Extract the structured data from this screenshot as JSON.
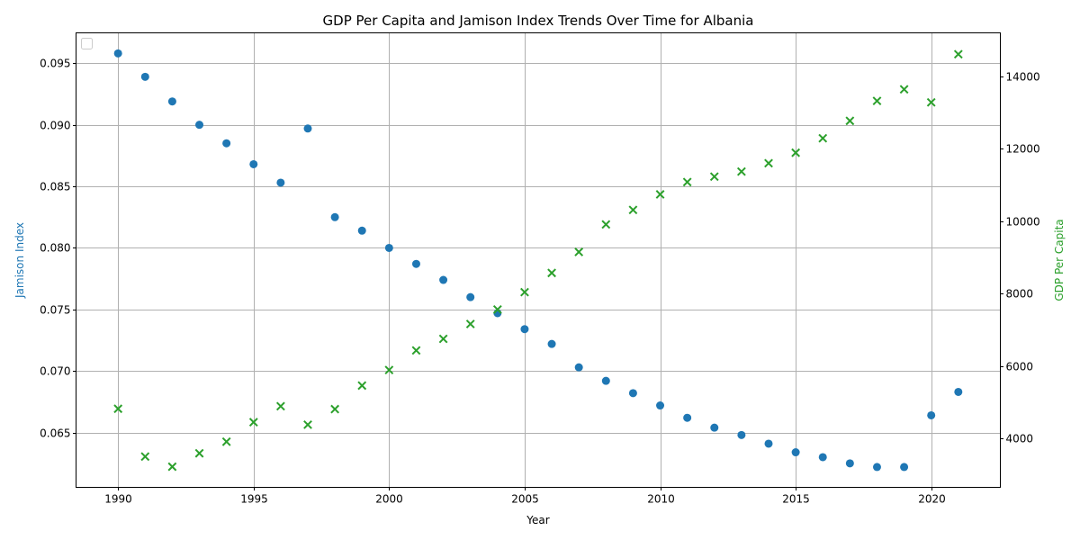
{
  "chart_data": {
    "type": "scatter",
    "title": "GDP Per Capita and Jamison Index Trends Over Time for Albania",
    "xlabel": "Year",
    "ylabel_left": "Jamison Index",
    "ylabel_right": "GDP Per Capita",
    "xlim": [
      1988.45,
      2022.55
    ],
    "ylim_left": [
      0.06055,
      0.09747
    ],
    "ylim_right": [
      2650,
      15200
    ],
    "x_ticks": [
      1990,
      1995,
      2000,
      2005,
      2010,
      2015,
      2020
    ],
    "y_left_ticks": [
      0.065,
      0.07,
      0.075,
      0.08,
      0.085,
      0.09,
      0.095
    ],
    "y_left_tick_labels": [
      "0.065",
      "0.070",
      "0.075",
      "0.080",
      "0.085",
      "0.090",
      "0.095"
    ],
    "y_right_ticks": [
      4000,
      6000,
      8000,
      10000,
      12000,
      14000
    ],
    "grid": true,
    "legend": "top-left, empty",
    "x": [
      1990,
      1991,
      1992,
      1993,
      1994,
      1995,
      1996,
      1997,
      1998,
      1999,
      2000,
      2001,
      2002,
      2003,
      2004,
      2005,
      2006,
      2007,
      2008,
      2009,
      2010,
      2011,
      2012,
      2013,
      2014,
      2015,
      2016,
      2017,
      2018,
      2019,
      2020,
      2021
    ],
    "series": [
      {
        "axis": "left",
        "marker": "circle",
        "color": "#1f77b4",
        "values": [
          0.0958,
          0.0939,
          0.0919,
          0.09,
          0.0885,
          0.0868,
          0.0853,
          0.0897,
          0.0825,
          0.0814,
          0.08,
          0.0787,
          0.0774,
          0.076,
          0.0747,
          0.0734,
          0.0722,
          0.0703,
          0.0692,
          0.0682,
          0.0672,
          0.0662,
          0.0654,
          0.0648,
          0.0641,
          0.0634,
          0.063,
          0.0625,
          0.0622,
          0.0622,
          0.0664,
          0.0683
        ]
      },
      {
        "axis": "right",
        "marker": "x",
        "color": "#2ca02c",
        "values": [
          4820,
          3500,
          3220,
          3590,
          3910,
          4450,
          4890,
          4380,
          4810,
          5460,
          5890,
          6430,
          6750,
          7160,
          7560,
          8040,
          8570,
          9150,
          9910,
          10310,
          10740,
          11080,
          11230,
          11370,
          11600,
          11890,
          12290,
          12770,
          13320,
          13640,
          13280,
          14610
        ]
      }
    ]
  }
}
